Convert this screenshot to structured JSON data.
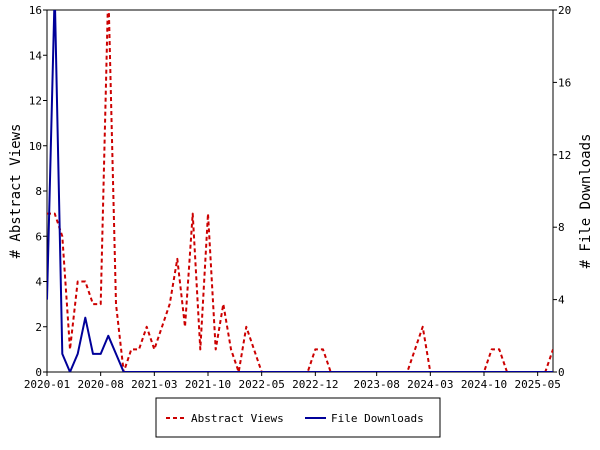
{
  "chart_data": {
    "type": "line",
    "ylabel_left": "# Abstract Views",
    "ylabel_right": "# File Downloads",
    "ylim_left": [
      0,
      16
    ],
    "ylim_right": [
      0,
      20
    ],
    "yticks_left": [
      0,
      2,
      4,
      6,
      8,
      10,
      12,
      14,
      16
    ],
    "yticks_right": [
      0,
      4,
      8,
      12,
      16,
      20
    ],
    "x_tick_labels": [
      "2020-01",
      "2020-08",
      "2021-03",
      "2021-10",
      "2022-05",
      "2022-12",
      "2023-08",
      "2024-03",
      "2024-10",
      "2025-05"
    ],
    "grid": false,
    "legend_position": "bottom-center",
    "series": [
      {
        "name": "Abstract Views",
        "axis": "left",
        "color": "#cc0000",
        "style": "dashed",
        "points": [
          [
            "2020-01",
            7
          ],
          [
            "2020-02",
            7
          ],
          [
            "2020-03",
            6
          ],
          [
            "2020-04",
            1
          ],
          [
            "2020-05",
            4
          ],
          [
            "2020-06",
            4
          ],
          [
            "2020-07",
            3
          ],
          [
            "2020-08",
            3
          ],
          [
            "2020-09",
            17
          ],
          [
            "2020-10",
            3
          ],
          [
            "2020-11",
            0
          ],
          [
            "2020-12",
            1
          ],
          [
            "2021-01",
            1
          ],
          [
            "2021-02",
            2
          ],
          [
            "2021-03",
            1
          ],
          [
            "2021-04",
            2
          ],
          [
            "2021-05",
            3
          ],
          [
            "2021-06",
            5
          ],
          [
            "2021-07",
            2
          ],
          [
            "2021-08",
            7
          ],
          [
            "2021-09",
            1
          ],
          [
            "2021-10",
            7
          ],
          [
            "2021-11",
            1
          ],
          [
            "2021-12",
            3
          ],
          [
            "2022-01",
            1
          ],
          [
            "2022-02",
            0
          ],
          [
            "2022-03",
            2
          ],
          [
            "2022-04",
            1
          ],
          [
            "2022-05",
            0
          ],
          [
            "2022-06",
            0
          ],
          [
            "2022-07",
            0
          ],
          [
            "2022-08",
            0
          ],
          [
            "2022-09",
            0
          ],
          [
            "2022-10",
            0
          ],
          [
            "2022-11",
            0
          ],
          [
            "2022-12",
            1
          ],
          [
            "2023-01",
            1
          ],
          [
            "2023-02",
            0
          ],
          [
            "2023-03",
            0
          ],
          [
            "2023-04",
            0
          ],
          [
            "2023-05",
            0
          ],
          [
            "2023-06",
            0
          ],
          [
            "2023-07",
            0
          ],
          [
            "2023-08",
            0
          ],
          [
            "2023-09",
            0
          ],
          [
            "2023-10",
            0
          ],
          [
            "2023-11",
            0
          ],
          [
            "2023-12",
            0
          ],
          [
            "2024-01",
            1
          ],
          [
            "2024-02",
            2
          ],
          [
            "2024-03",
            0
          ],
          [
            "2024-04",
            0
          ],
          [
            "2024-05",
            0
          ],
          [
            "2024-06",
            0
          ],
          [
            "2024-07",
            0
          ],
          [
            "2024-08",
            0
          ],
          [
            "2024-09",
            0
          ],
          [
            "2024-10",
            0
          ],
          [
            "2024-11",
            1
          ],
          [
            "2024-12",
            1
          ],
          [
            "2025-01",
            0
          ],
          [
            "2025-02",
            0
          ],
          [
            "2025-03",
            0
          ],
          [
            "2025-04",
            0
          ],
          [
            "2025-05",
            0
          ],
          [
            "2025-06",
            0
          ],
          [
            "2025-07",
            1
          ]
        ]
      },
      {
        "name": "File Downloads",
        "axis": "right",
        "color": "#000099",
        "style": "solid",
        "points": [
          [
            "2020-01",
            4
          ],
          [
            "2020-02",
            21
          ],
          [
            "2020-03",
            1
          ],
          [
            "2020-04",
            0
          ],
          [
            "2020-05",
            1
          ],
          [
            "2020-06",
            3
          ],
          [
            "2020-07",
            1
          ],
          [
            "2020-08",
            1
          ],
          [
            "2020-09",
            2
          ],
          [
            "2020-10",
            1
          ],
          [
            "2020-11",
            0
          ],
          [
            "2020-12",
            0
          ],
          [
            "2021-01",
            0
          ],
          [
            "2021-02",
            0
          ],
          [
            "2021-03",
            0
          ],
          [
            "2021-04",
            0
          ],
          [
            "2021-05",
            0
          ],
          [
            "2021-06",
            0
          ],
          [
            "2021-07",
            0
          ],
          [
            "2021-08",
            0
          ],
          [
            "2021-09",
            0
          ],
          [
            "2021-10",
            0
          ],
          [
            "2021-11",
            0
          ],
          [
            "2021-12",
            0
          ],
          [
            "2022-01",
            0
          ],
          [
            "2022-02",
            0
          ],
          [
            "2022-03",
            0
          ],
          [
            "2022-04",
            0
          ],
          [
            "2022-05",
            0
          ],
          [
            "2022-06",
            0
          ],
          [
            "2022-07",
            0
          ],
          [
            "2022-08",
            0
          ],
          [
            "2022-09",
            0
          ],
          [
            "2022-10",
            0
          ],
          [
            "2022-11",
            0
          ],
          [
            "2022-12",
            0
          ],
          [
            "2023-01",
            0
          ],
          [
            "2023-02",
            0
          ],
          [
            "2023-03",
            0
          ],
          [
            "2023-04",
            0
          ],
          [
            "2023-05",
            0
          ],
          [
            "2023-06",
            0
          ],
          [
            "2023-07",
            0
          ],
          [
            "2023-08",
            0
          ],
          [
            "2023-09",
            0
          ],
          [
            "2023-10",
            0
          ],
          [
            "2023-11",
            0
          ],
          [
            "2023-12",
            0
          ],
          [
            "2024-01",
            0
          ],
          [
            "2024-02",
            0
          ],
          [
            "2024-03",
            0
          ],
          [
            "2024-04",
            0
          ],
          [
            "2024-05",
            0
          ],
          [
            "2024-06",
            0
          ],
          [
            "2024-07",
            0
          ],
          [
            "2024-08",
            0
          ],
          [
            "2024-09",
            0
          ],
          [
            "2024-10",
            0
          ],
          [
            "2024-11",
            0
          ],
          [
            "2024-12",
            0
          ],
          [
            "2025-01",
            0
          ],
          [
            "2025-02",
            0
          ],
          [
            "2025-03",
            0
          ],
          [
            "2025-04",
            0
          ],
          [
            "2025-05",
            0
          ],
          [
            "2025-06",
            0
          ],
          [
            "2025-07",
            0
          ]
        ]
      }
    ]
  }
}
